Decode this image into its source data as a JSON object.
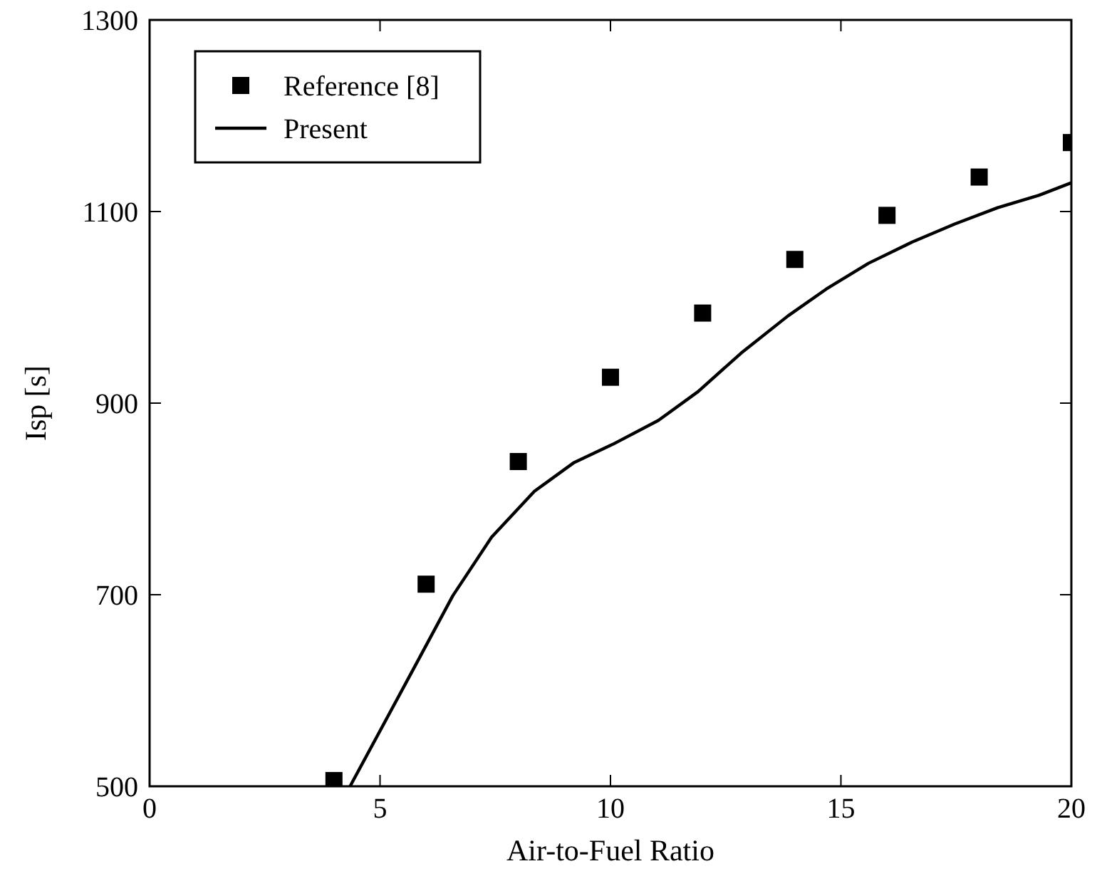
{
  "chart_data": {
    "type": "line",
    "xlabel": "Air-to-Fuel Ratio",
    "ylabel": "Isp [s]",
    "xlim": [
      0,
      20
    ],
    "ylim": [
      500,
      1300
    ],
    "xticks": [
      0,
      5,
      10,
      15,
      20
    ],
    "yticks": [
      500,
      700,
      900,
      1100,
      1300
    ],
    "grid": false,
    "legend": "top left",
    "series": [
      {
        "name": "Reference [8]",
        "type": "scatter",
        "marker": "square",
        "color": "#000000",
        "x": [
          4,
          6,
          8,
          10,
          12,
          14,
          16,
          18,
          20
        ],
        "values": [
          506,
          711,
          839,
          927,
          994,
          1050,
          1096,
          1136,
          1172
        ]
      },
      {
        "name": "Present",
        "type": "line",
        "marker": "none",
        "line_style": "solid",
        "color": "#000000",
        "x": [
          4.35,
          5.72,
          6.58,
          7.42,
          8.35,
          9.21,
          10.05,
          11.04,
          11.9,
          12.83,
          13.85,
          14.68,
          15.6,
          16.54,
          17.47,
          18.4,
          19.3,
          20
        ],
        "values": [
          500,
          622,
          699,
          760,
          808,
          838,
          857,
          882,
          912,
          952,
          991,
          1019,
          1046,
          1068,
          1087,
          1104,
          1117,
          1130
        ]
      }
    ]
  }
}
